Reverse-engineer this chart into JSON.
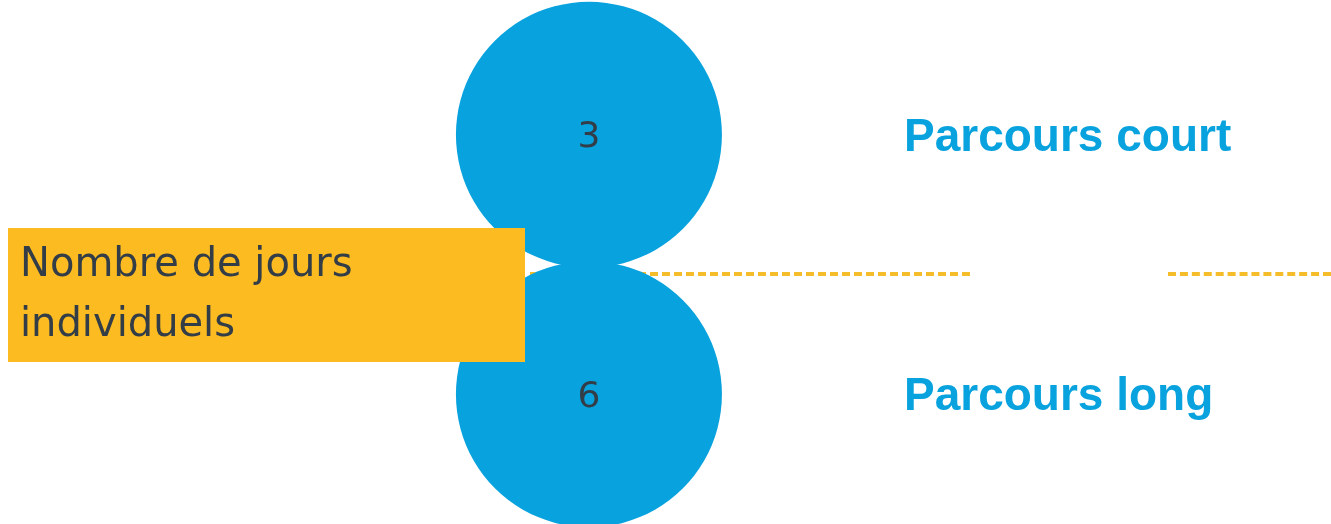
{
  "chart_data": {
    "type": "other",
    "ylabel": "Nombre de jours individuels",
    "categories": [
      "Parcours court",
      "Parcours long"
    ],
    "values": [
      3,
      6
    ],
    "color": "#08a2de",
    "data_labels": true
  }
}
